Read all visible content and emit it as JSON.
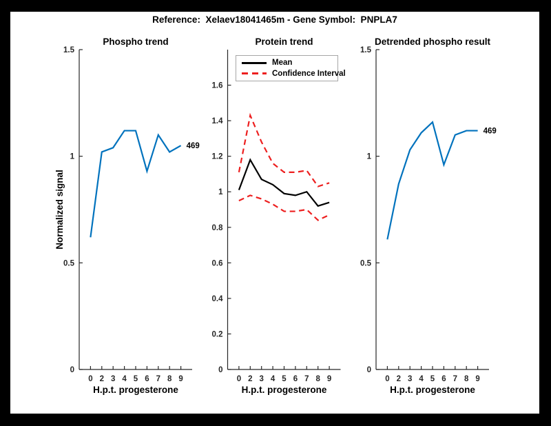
{
  "figure": {
    "suptitle": "Reference:  Xelaev18041465m - Gene Symbol:  PNPLA7"
  },
  "colors": {
    "accent_blue": "#0072BD",
    "ci_red": "#ED1F1F",
    "mean_black": "#000000",
    "axis_gray": "#262626",
    "legend_border": "#A6A6A6",
    "background": "#FFFFFF",
    "frame": "#000000"
  },
  "ylabel": "Normalized signal",
  "legend": {
    "items": [
      {
        "label": "Mean",
        "style": "solid",
        "color": "#000000"
      },
      {
        "label": "Confidence Interval",
        "style": "dashed",
        "color": "#ED1F1F"
      }
    ]
  },
  "chart_data": [
    {
      "type": "line",
      "title": "Phospho trend",
      "xlabel": "H.p.t. progesterone",
      "ylabel": "Normalized signal",
      "categories": [
        "0",
        "2",
        "3",
        "4",
        "5",
        "6",
        "7",
        "8",
        "9"
      ],
      "series": [
        {
          "name": "469",
          "color": "#0072BD",
          "dash": "solid",
          "values": [
            0.62,
            1.02,
            1.04,
            1.12,
            1.12,
            0.93,
            1.1,
            1.02,
            1.05
          ]
        }
      ],
      "annotation": "469",
      "ylim": [
        0,
        1.5
      ],
      "yticks": [
        0,
        0.5,
        1,
        1.5
      ],
      "grid": false,
      "legend_position": "none"
    },
    {
      "type": "line",
      "title": "Protein trend",
      "xlabel": "H.p.t. progesterone",
      "ylabel": "",
      "categories": [
        "0",
        "2",
        "3",
        "4",
        "5",
        "6",
        "7",
        "8",
        "9"
      ],
      "series": [
        {
          "name": "Mean",
          "color": "#000000",
          "dash": "solid",
          "values": [
            1.01,
            1.18,
            1.07,
            1.04,
            0.99,
            0.98,
            1.0,
            0.92,
            0.94
          ]
        },
        {
          "name": "Confidence Interval upper",
          "color": "#ED1F1F",
          "dash": "dashed",
          "values": [
            1.11,
            1.43,
            1.28,
            1.16,
            1.11,
            1.11,
            1.12,
            1.03,
            1.05
          ]
        },
        {
          "name": "Confidence Interval lower",
          "color": "#ED1F1F",
          "dash": "dashed",
          "values": [
            0.95,
            0.98,
            0.96,
            0.93,
            0.89,
            0.89,
            0.9,
            0.84,
            0.87
          ]
        }
      ],
      "annotation": "",
      "ylim": [
        0,
        1.8
      ],
      "yticks": [
        0,
        0.2,
        0.4,
        0.6,
        0.8,
        1,
        1.2,
        1.4,
        1.6
      ],
      "grid": false,
      "legend_position": "top-left"
    },
    {
      "type": "line",
      "title": "Detrended phospho result",
      "xlabel": "H.p.t. progesterone",
      "ylabel": "",
      "categories": [
        "0",
        "2",
        "3",
        "4",
        "5",
        "6",
        "7",
        "8",
        "9"
      ],
      "series": [
        {
          "name": "469",
          "color": "#0072BD",
          "dash": "solid",
          "values": [
            0.61,
            0.87,
            1.03,
            1.11,
            1.16,
            0.96,
            1.1,
            1.12,
            1.12
          ]
        }
      ],
      "annotation": "469",
      "ylim": [
        0,
        1.5
      ],
      "yticks": [
        0,
        0.5,
        1,
        1.5
      ],
      "grid": false,
      "legend_position": "none"
    }
  ]
}
